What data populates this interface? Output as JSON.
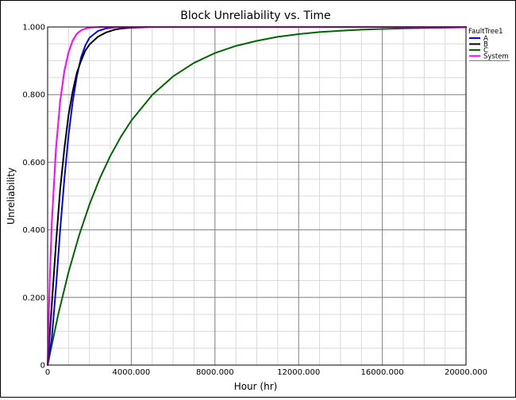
{
  "chart_data": {
    "type": "line",
    "title": "Block Unreliability vs. Time",
    "xlabel": "Hour (hr)",
    "ylabel": "Unreliability",
    "xlim": [
      0,
      20000
    ],
    "ylim": [
      0,
      1
    ],
    "x_ticks": [
      0,
      4000,
      8000,
      12000,
      16000,
      20000
    ],
    "x_tick_labels": [
      "0",
      "4000.000",
      "8000.000",
      "12000.000",
      "16000.000",
      "20000.000"
    ],
    "y_ticks": [
      0,
      0.2,
      0.4,
      0.6,
      0.8,
      1.0
    ],
    "y_tick_labels": [
      "0",
      "0.200",
      "0.400",
      "0.600",
      "0.800",
      "1.000"
    ],
    "grid": true,
    "legend_title": "FaultTree1",
    "legend_position": "right",
    "series": [
      {
        "name": "A",
        "color": "#0000ff",
        "x": [
          0,
          200,
          400,
          600,
          800,
          1000,
          1200,
          1400,
          1600,
          1800,
          2000,
          2400,
          2800,
          3200,
          3600,
          4000,
          5000,
          20000
        ],
        "y": [
          0,
          0.08,
          0.23,
          0.4,
          0.55,
          0.68,
          0.78,
          0.855,
          0.91,
          0.945,
          0.968,
          0.988,
          0.996,
          0.999,
          1.0,
          1.0,
          1.0,
          1.0
        ]
      },
      {
        "name": "B",
        "color": "#000000",
        "x": [
          0,
          200,
          400,
          600,
          800,
          1000,
          1200,
          1400,
          1600,
          1800,
          2000,
          2400,
          2800,
          3200,
          3600,
          4000,
          5000,
          20000
        ],
        "y": [
          0,
          0.18,
          0.36,
          0.52,
          0.64,
          0.74,
          0.81,
          0.865,
          0.9,
          0.93,
          0.948,
          0.971,
          0.984,
          0.992,
          0.996,
          0.998,
          1.0,
          1.0
        ]
      },
      {
        "name": "C",
        "color": "#006400",
        "x": [
          0,
          500,
          1000,
          1500,
          2000,
          2500,
          3000,
          3500,
          4000,
          5000,
          6000,
          7000,
          8000,
          9000,
          10000,
          11000,
          12000,
          13000,
          14000,
          15000,
          16000,
          17000,
          18000,
          19000,
          20000
        ],
        "y": [
          0,
          0.148,
          0.275,
          0.383,
          0.475,
          0.553,
          0.619,
          0.675,
          0.723,
          0.799,
          0.854,
          0.894,
          0.923,
          0.944,
          0.959,
          0.971,
          0.979,
          0.985,
          0.989,
          0.992,
          0.994,
          0.996,
          0.997,
          0.998,
          0.999
        ]
      },
      {
        "name": "System",
        "color": "#ff00ff",
        "x": [
          0,
          100,
          200,
          400,
          600,
          800,
          1000,
          1200,
          1400,
          1600,
          1800,
          2000,
          2500,
          3000,
          20000
        ],
        "y": [
          0,
          0.25,
          0.42,
          0.64,
          0.78,
          0.87,
          0.925,
          0.96,
          0.98,
          0.99,
          0.995,
          0.998,
          1.0,
          1.0,
          1.0
        ]
      }
    ]
  }
}
